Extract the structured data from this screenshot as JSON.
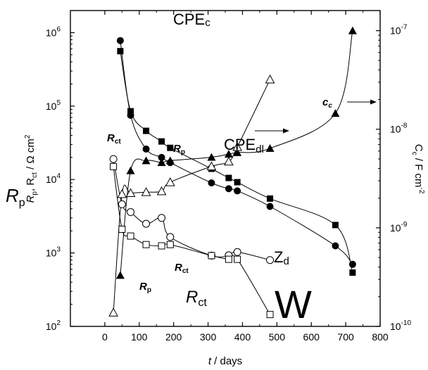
{
  "chart_data": {
    "type": "scatter",
    "title": "",
    "xlabel": {
      "var": "t",
      "rest": " / days"
    },
    "ylabel_left": {
      "main": "R",
      "sub1": "p",
      "sep": ", R",
      "sub2": "ct",
      "unit": " / Ω cm",
      "exp": "2"
    },
    "ylabel_right": {
      "main": "C",
      "sub": "c",
      "unit": " / F cm",
      "exp": "-2"
    },
    "x_axis": {
      "range": [
        -100,
        800
      ],
      "ticks": [
        "0",
        "100",
        "200",
        "300",
        "400",
        "500",
        "600",
        "700",
        "800"
      ]
    },
    "y_left": {
      "scale": "log",
      "range": [
        100,
        2000000
      ],
      "ticks": [
        {
          "base": "10",
          "exp": "2"
        },
        {
          "base": "10",
          "exp": "3"
        },
        {
          "base": "10",
          "exp": "4"
        },
        {
          "base": "10",
          "exp": "5"
        },
        {
          "base": "10",
          "exp": "6"
        }
      ]
    },
    "y_right": {
      "scale": "log",
      "range": [
        1e-10,
        1.6e-07
      ],
      "ticks": [
        {
          "base": "10",
          "exp": "-10"
        },
        {
          "base": "10",
          "exp": "-9"
        },
        {
          "base": "10",
          "exp": "-8"
        },
        {
          "base": "10",
          "exp": "-7"
        }
      ]
    },
    "series": [
      {
        "marker": "filled-circle",
        "axis": "left",
        "x": [
          45,
          75,
          120,
          165,
          190,
          310,
          360,
          385,
          480,
          670,
          720
        ],
        "y": [
          780000,
          75000,
          26000,
          20000,
          17000,
          9000,
          7500,
          7000,
          4300,
          1250,
          700
        ]
      },
      {
        "marker": "filled-square",
        "axis": "left",
        "x": [
          45,
          75,
          120,
          165,
          190,
          310,
          360,
          385,
          480,
          670,
          720
        ],
        "y": [
          560000,
          85000,
          46000,
          33000,
          27000,
          14000,
          10500,
          9200,
          5500,
          2400,
          540
        ]
      },
      {
        "marker": "open-circle",
        "axis": "left",
        "x": [
          25,
          50,
          75,
          120,
          165,
          190,
          310,
          360,
          385,
          480
        ],
        "y": [
          19000,
          4600,
          3600,
          2500,
          3000,
          1650,
          920,
          930,
          1030,
          800
        ]
      },
      {
        "marker": "open-square",
        "axis": "left",
        "x": [
          25,
          50,
          75,
          120,
          165,
          190,
          310,
          360,
          385,
          480
        ],
        "y": [
          15000,
          2100,
          1700,
          1300,
          1250,
          1300,
          920,
          820,
          820,
          145
        ]
      },
      {
        "marker": "filled-triangle",
        "axis": "right",
        "x": [
          45,
          75,
          120,
          165,
          190,
          310,
          360,
          385,
          480,
          670,
          720
        ],
        "y": [
          3.3e-10,
          3.8e-09,
          4.8e-09,
          4.6e-09,
          4.8e-09,
          5.2e-09,
          5.6e-09,
          5.8e-09,
          6.4e-09,
          1.45e-08,
          1e-07
        ]
      },
      {
        "marker": "open-triangle",
        "axis": "right",
        "x": [
          25,
          50,
          75,
          120,
          165,
          190,
          310,
          360,
          385,
          480
        ],
        "y": [
          1.38e-10,
          2.2e-09,
          2.25e-09,
          2.3e-09,
          2.35e-09,
          2.9e-09,
          4.2e-09,
          4.7e-09,
          6.6e-09,
          3.2e-08
        ]
      }
    ],
    "annotations": {
      "cpe_c": {
        "main": "CPE",
        "sub": "c"
      },
      "cpe_dl": {
        "main": "CPE",
        "sub": "dl"
      },
      "c_c": {
        "main": "c",
        "sub": "c"
      },
      "rct_upper": {
        "main": "R",
        "sub": "ct"
      },
      "rp_upper": {
        "main": "R",
        "sub": "p"
      },
      "rct_lower": {
        "main": "R",
        "sub": "ct"
      },
      "rp_lower": {
        "main": "R",
        "sub": "p"
      },
      "z_d": {
        "main": "Z",
        "sub": "d"
      },
      "rct_big": {
        "main": "R",
        "sub": "ct"
      },
      "w": "W",
      "rp_left": {
        "main": "R",
        "sub": "p"
      }
    },
    "grid": false
  }
}
